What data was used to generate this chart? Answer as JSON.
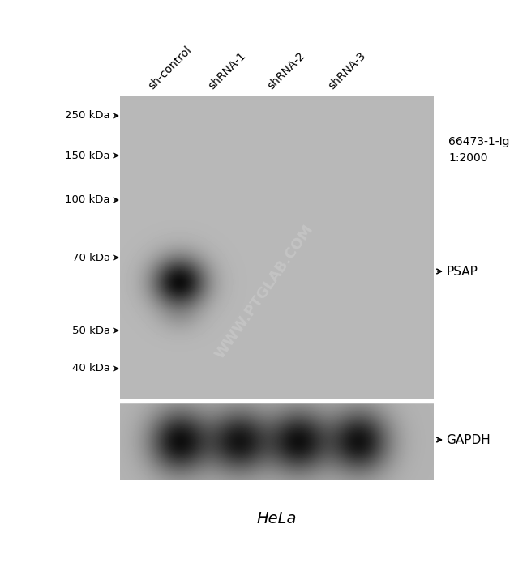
{
  "title": "HeLa",
  "antibody_label": "66473-1-Ig\n1:2000",
  "psap_label": "←PSAP",
  "gapdh_label": "←GAPDH",
  "lane_labels": [
    "sh-control",
    "shRNA-1",
    "shRNA-2",
    "shRNA-3"
  ],
  "mw_markers": [
    "250 kDa→",
    "150 kDa→",
    "100 kDa→",
    "70 kDa→",
    "50 kDa→",
    "40 kDa→"
  ],
  "mw_values": [
    250,
    150,
    100,
    70,
    50,
    40
  ],
  "upper_bg": 0.72,
  "lower_bg": 0.7,
  "watermark_text": "WWW.PTGLAB.COM",
  "fig_bg": "#ffffff"
}
